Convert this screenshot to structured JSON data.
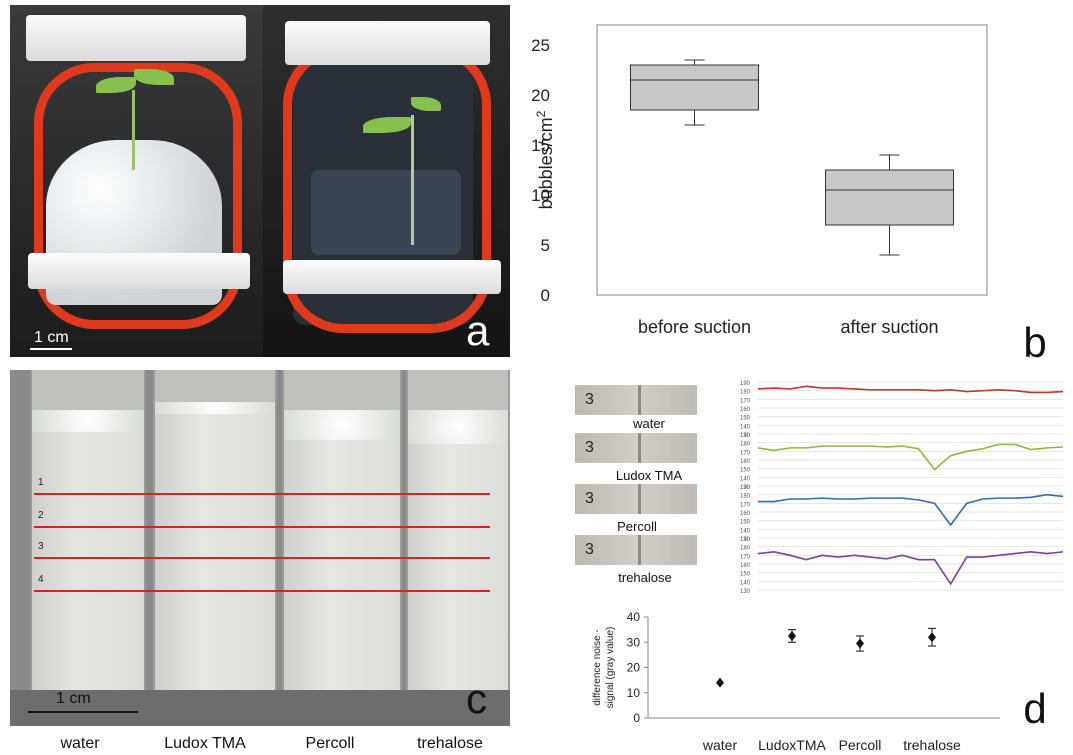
{
  "panel_a": {
    "letter": "a",
    "scale_label": "1 cm"
  },
  "panel_c": {
    "letter": "c",
    "scale_label": "1 cm",
    "line_numbers": [
      "1",
      "2",
      "3",
      "4"
    ],
    "categories": [
      "water",
      "Ludox TMA",
      "Percoll",
      "trehalose"
    ]
  },
  "panel_b_letter": "b",
  "panel_d_letter": "d",
  "swatches": {
    "number": "3",
    "labels": [
      "water",
      "Ludox TMA",
      "Percoll",
      "trehalose"
    ]
  },
  "chart_data": [
    {
      "id": "panel-b-boxplot",
      "type": "box",
      "ylabel": "bubbles/cm2",
      "ylim": [
        0,
        27
      ],
      "yticks": [
        0,
        5,
        10,
        15,
        20,
        25
      ],
      "categories": [
        "before suction",
        "after suction"
      ],
      "boxes": [
        {
          "category": "before suction",
          "whisker_low": 17,
          "q1": 18.5,
          "median": 21.5,
          "q3": 23,
          "whisker_high": 23.5
        },
        {
          "category": "after suction",
          "whisker_low": 4,
          "q1": 7,
          "median": 10.5,
          "q3": 12.5,
          "whisker_high": 14
        }
      ],
      "colors": {
        "box_fill": "#c8c8c8",
        "stroke": "#333333"
      }
    },
    {
      "id": "panel-d-profiles",
      "type": "line",
      "yticks": [
        130,
        140,
        150,
        160,
        170,
        180,
        190
      ],
      "series": [
        {
          "color": "#c0392b",
          "values": [
            182,
            183,
            182,
            185,
            183,
            183,
            182,
            181,
            181,
            181,
            181,
            180,
            181,
            179,
            180,
            181,
            180,
            178,
            178,
            179
          ]
        },
        {
          "color": "#8cba3c",
          "values": [
            174,
            171,
            174,
            174,
            176,
            176,
            176,
            176,
            175,
            176,
            173,
            149,
            165,
            170,
            173,
            178,
            178,
            172,
            174,
            175
          ]
        },
        {
          "color": "#2e6db4",
          "values": [
            172,
            172,
            175,
            175,
            176,
            175,
            175,
            176,
            176,
            176,
            174,
            170,
            145,
            170,
            175,
            176,
            176,
            177,
            180,
            178
          ]
        },
        {
          "color": "#7b3fa0",
          "values": [
            172,
            174,
            170,
            165,
            170,
            168,
            170,
            168,
            166,
            170,
            165,
            165,
            137,
            168,
            168,
            170,
            172,
            174,
            172,
            174
          ]
        }
      ]
    },
    {
      "id": "panel-d-scatter",
      "type": "scatter",
      "ylabel": "difference noise - signal (gray value)",
      "ylim": [
        0,
        40
      ],
      "yticks": [
        0,
        10,
        20,
        30,
        40
      ],
      "categories": [
        "water",
        "LudoxTMA",
        "Percoll",
        "trehalose"
      ],
      "values": [
        14,
        32.5,
        29.5,
        32
      ],
      "errors": [
        0,
        2.5,
        3,
        3.5
      ]
    }
  ]
}
